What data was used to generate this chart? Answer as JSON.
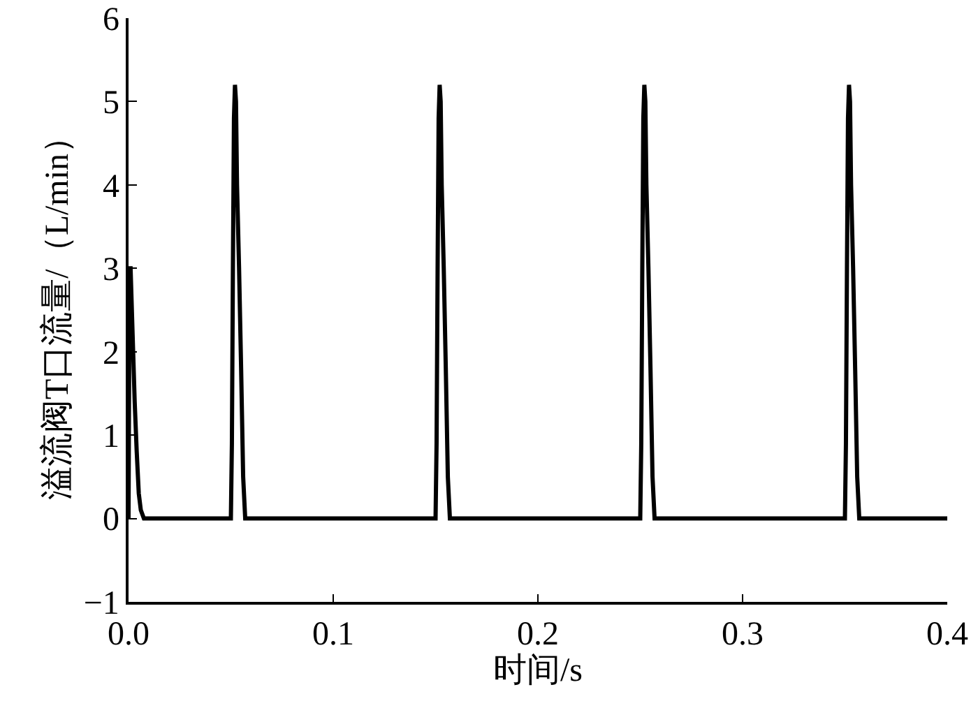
{
  "chart_data": {
    "type": "line",
    "xlabel": "时间/s",
    "ylabel": "溢流阀T口流量/（L/min）",
    "x": [
      0,
      0.0005,
      0.001,
      0.002,
      0.003,
      0.004,
      0.005,
      0.006,
      0.0075,
      0.05,
      0.0505,
      0.051,
      0.0515,
      0.052,
      0.0525,
      0.053,
      0.054,
      0.055,
      0.056,
      0.057,
      0.15,
      0.1505,
      0.151,
      0.1515,
      0.152,
      0.1525,
      0.153,
      0.154,
      0.155,
      0.156,
      0.157,
      0.25,
      0.2505,
      0.251,
      0.2515,
      0.252,
      0.2525,
      0.253,
      0.254,
      0.255,
      0.256,
      0.257,
      0.35,
      0.3505,
      0.351,
      0.3515,
      0.352,
      0.3525,
      0.353,
      0.354,
      0.355,
      0.356,
      0.357,
      0.4
    ],
    "series": [
      {
        "color": "#000000",
        "values": [
          0,
          3.0,
          3.0,
          2.2,
          1.4,
          0.8,
          0.3,
          0.1,
          0,
          0,
          0.9,
          3.0,
          4.8,
          5.2,
          5.0,
          4.0,
          3.0,
          1.8,
          0.5,
          0,
          0,
          0.9,
          3.0,
          4.8,
          5.2,
          5.0,
          4.0,
          3.0,
          1.8,
          0.5,
          0,
          0,
          0.9,
          3.0,
          4.8,
          5.2,
          5.0,
          4.0,
          3.0,
          1.8,
          0.5,
          0,
          0,
          0.9,
          3.0,
          4.8,
          5.2,
          5.0,
          4.0,
          3.0,
          1.8,
          0.5,
          0,
          0
        ]
      }
    ],
    "xlim": [
      0,
      0.4
    ],
    "xticks": [
      {
        "value": 0,
        "label": "0.0"
      },
      0.1,
      0.2,
      0.3,
      0.4
    ],
    "ylim": [
      -1,
      6
    ],
    "yticks": [
      {
        "value": -1,
        "label": "−1"
      },
      0,
      1,
      2,
      3,
      4,
      5,
      6
    ],
    "grid": false,
    "marker": "none",
    "line_style": "solid"
  }
}
